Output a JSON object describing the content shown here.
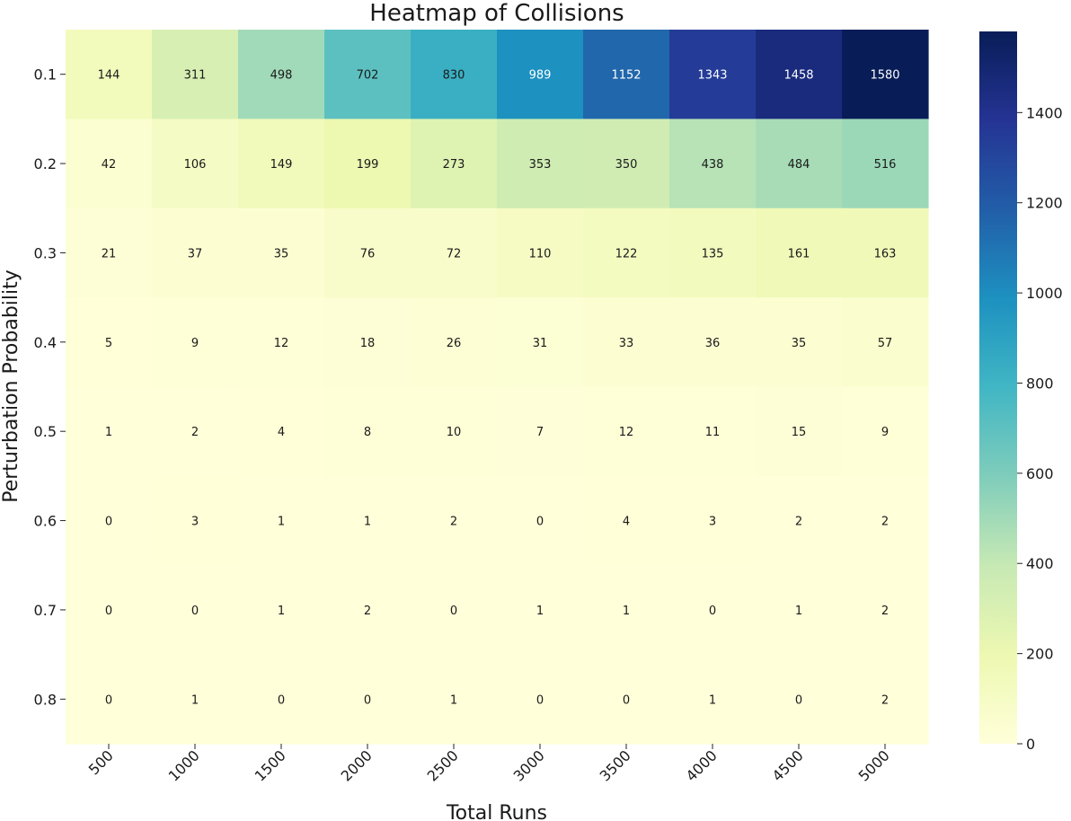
{
  "chart_data": {
    "type": "heatmap",
    "title": "Heatmap of Collisions",
    "xlabel": "Total Runs",
    "ylabel": "Perturbation Probability",
    "x": [
      "500",
      "1000",
      "1500",
      "2000",
      "2500",
      "3000",
      "3500",
      "4000",
      "4500",
      "5000"
    ],
    "y": [
      "0.1",
      "0.2",
      "0.3",
      "0.4",
      "0.5",
      "0.6",
      "0.7",
      "0.8"
    ],
    "values": [
      [
        144,
        311,
        498,
        702,
        830,
        989,
        1152,
        1343,
        1458,
        1580
      ],
      [
        42,
        106,
        149,
        199,
        273,
        353,
        350,
        438,
        484,
        516
      ],
      [
        21,
        37,
        35,
        76,
        72,
        110,
        122,
        135,
        161,
        163
      ],
      [
        5,
        9,
        12,
        18,
        26,
        31,
        33,
        36,
        35,
        57
      ],
      [
        1,
        2,
        4,
        8,
        10,
        7,
        12,
        11,
        15,
        9
      ],
      [
        0,
        3,
        1,
        1,
        2,
        0,
        4,
        3,
        2,
        2
      ],
      [
        0,
        0,
        1,
        2,
        0,
        1,
        1,
        0,
        1,
        2
      ],
      [
        0,
        1,
        0,
        0,
        1,
        0,
        0,
        1,
        0,
        2
      ]
    ],
    "colorbar": {
      "ticks": [
        0,
        200,
        400,
        600,
        800,
        1000,
        1200,
        1400
      ],
      "range": [
        0,
        1580
      ],
      "colormap": "YlGnBu"
    },
    "annotations": "cell values"
  }
}
